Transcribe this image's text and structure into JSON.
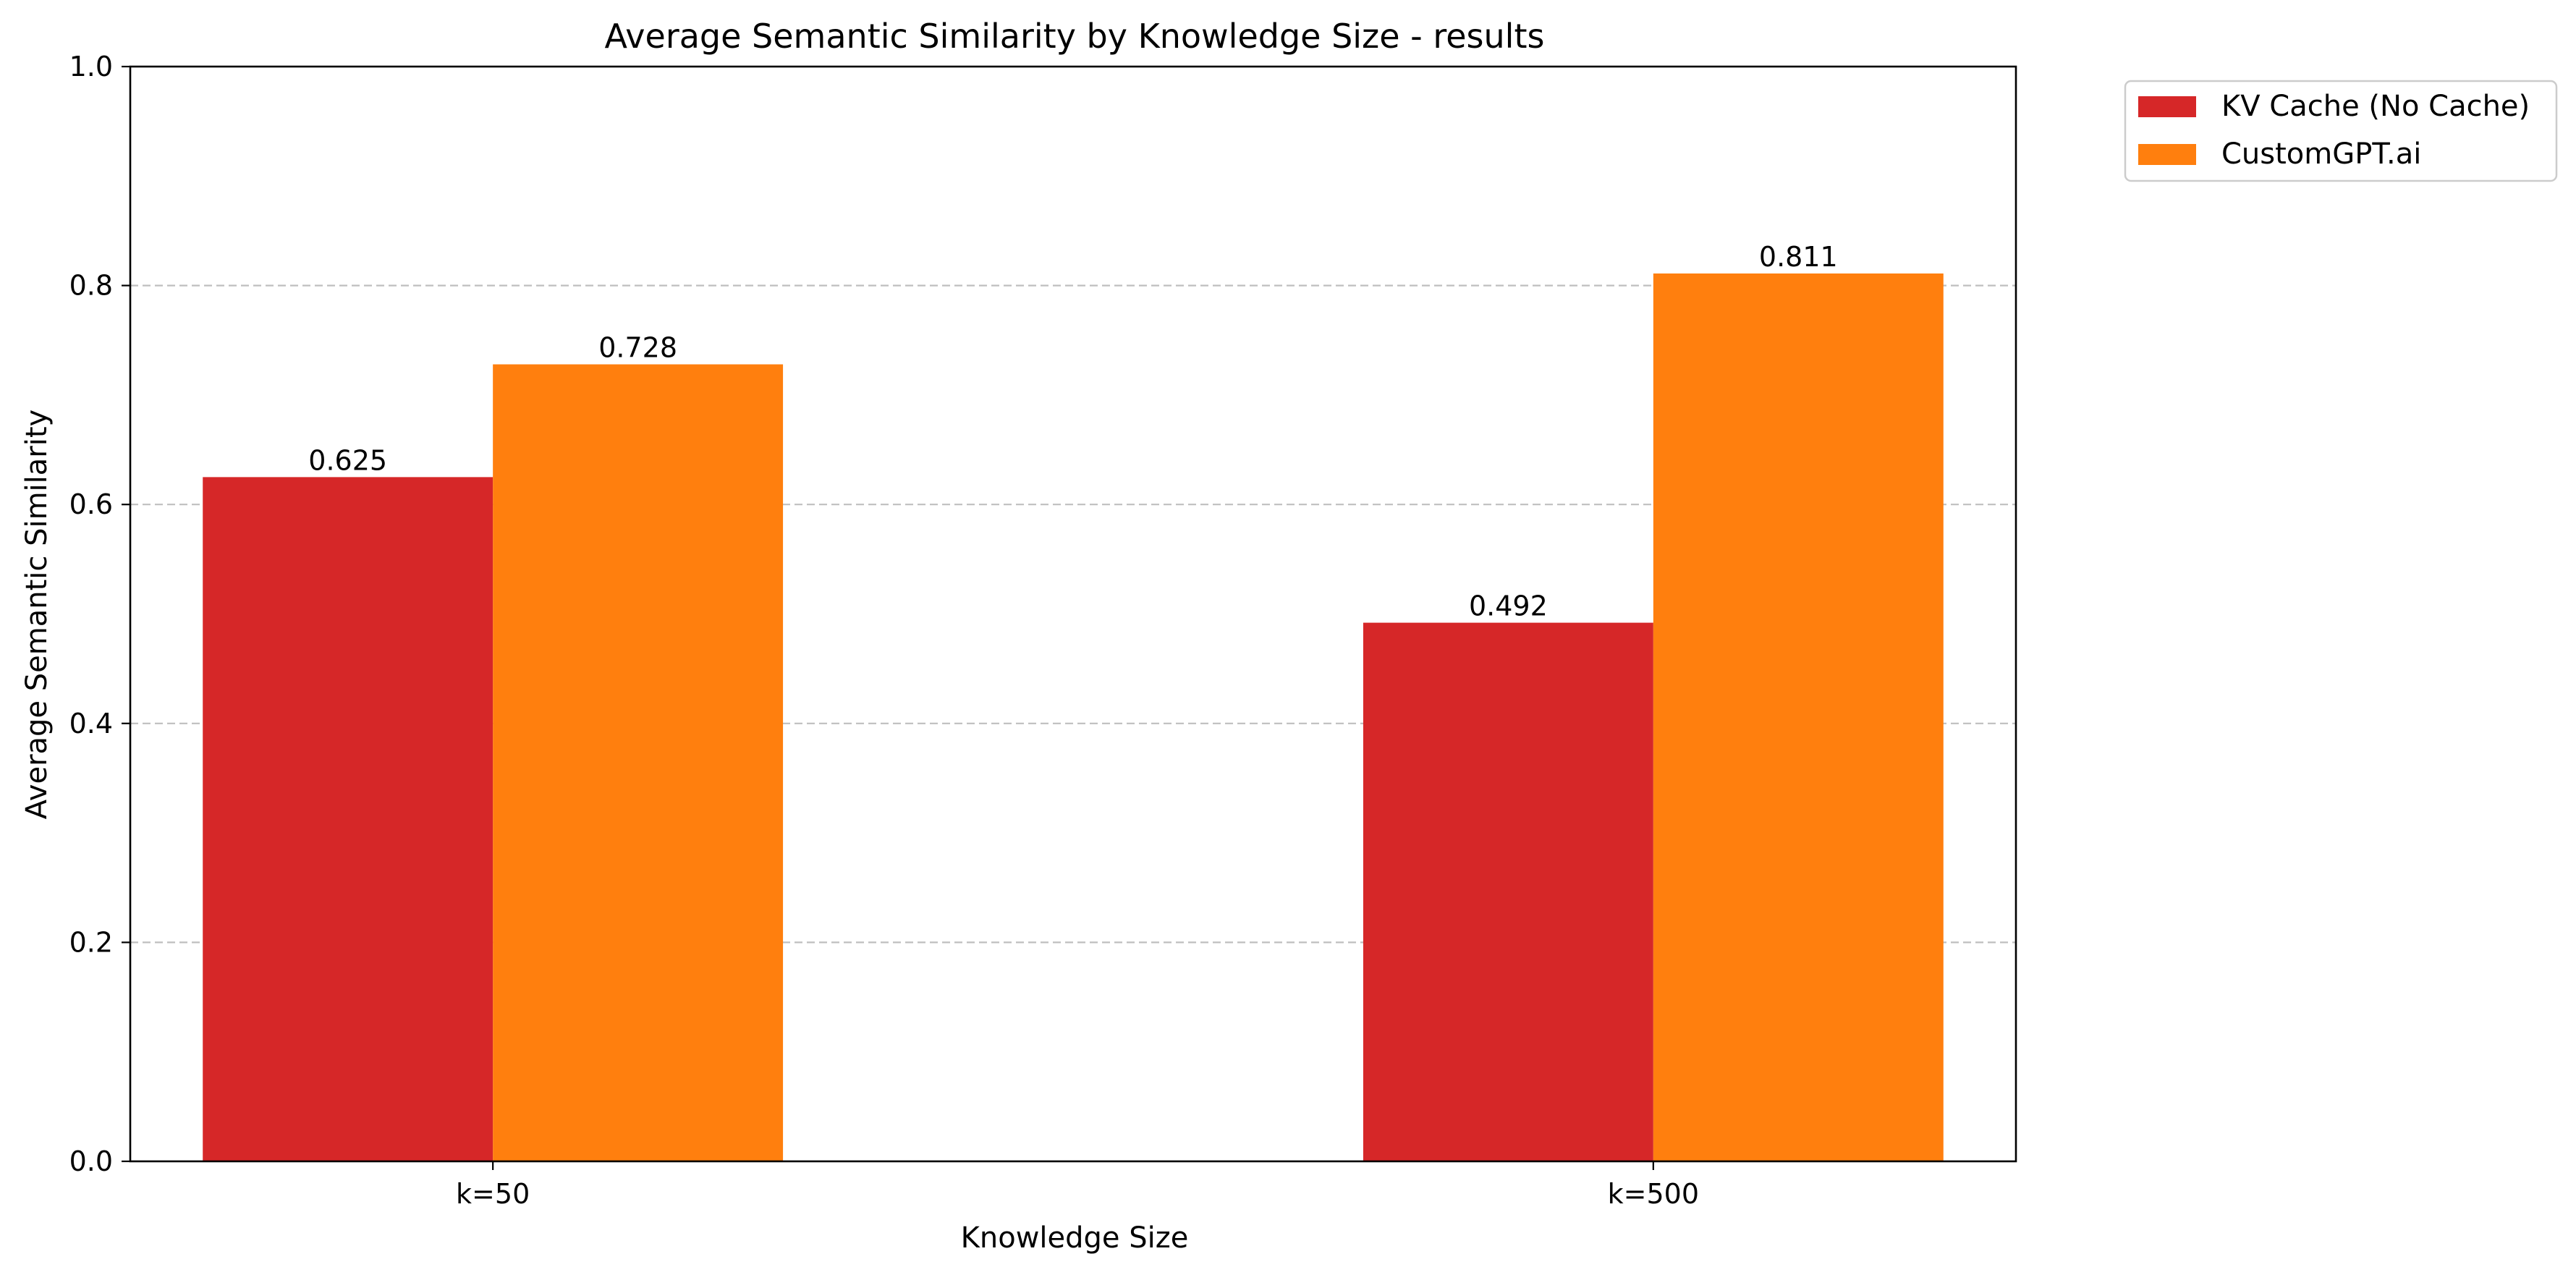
{
  "chart_data": {
    "type": "bar",
    "title": "Average Semantic Similarity by Knowledge Size - results",
    "xlabel": "Knowledge Size",
    "ylabel": "Average Semantic Similarity",
    "categories": [
      "k=50",
      "k=500"
    ],
    "series": [
      {
        "name": "KV Cache (No Cache)",
        "color": "#d62728",
        "values": [
          0.625,
          0.492
        ]
      },
      {
        "name": "CustomGPT.ai",
        "color": "#ff7f0e",
        "values": [
          0.728,
          0.811
        ]
      }
    ],
    "ylim": [
      0,
      1.0
    ],
    "yticks": [
      0.0,
      0.2,
      0.4,
      0.6,
      0.8,
      1.0
    ],
    "ytick_labels": [
      "0.0",
      "0.2",
      "0.4",
      "0.6",
      "0.8",
      "1.0"
    ],
    "grid": "y-dashed",
    "legend_position": "outside-top-right"
  }
}
